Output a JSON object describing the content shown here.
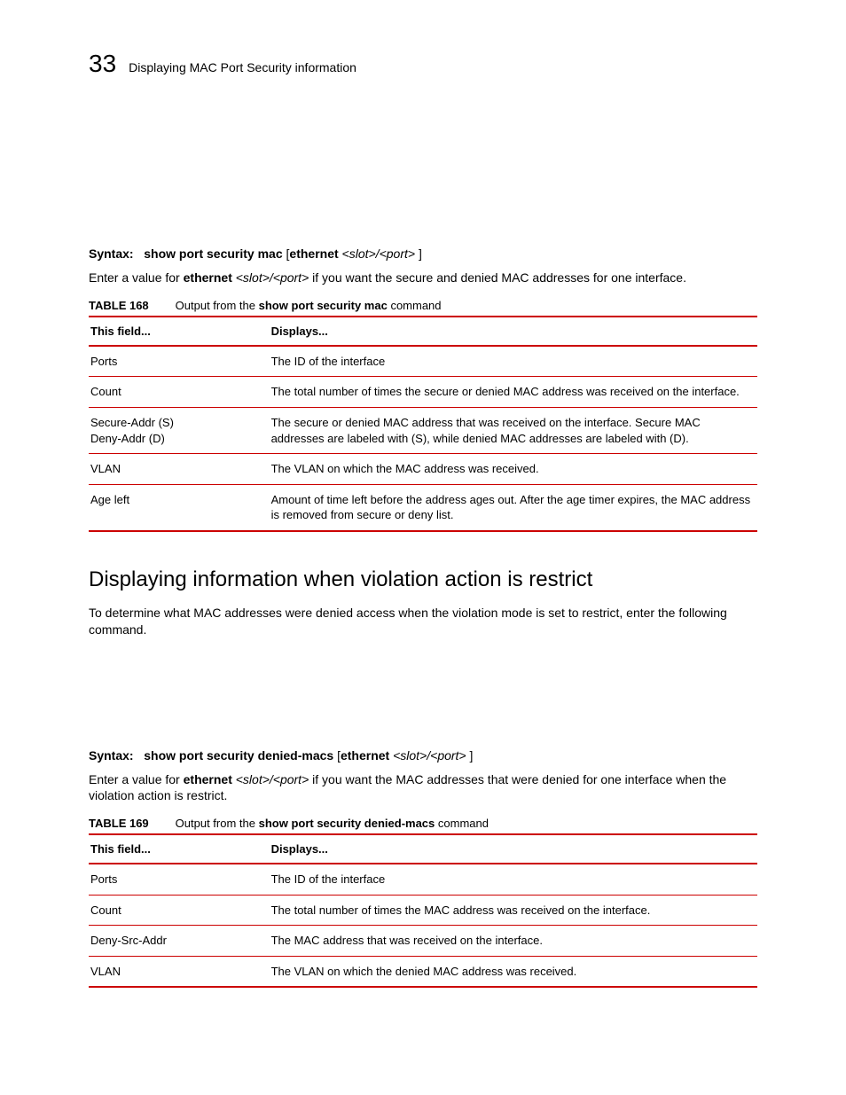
{
  "header": {
    "chapter_number": "33",
    "title": "Displaying MAC Port Security information"
  },
  "syntax1": {
    "label": "Syntax:",
    "cmd": "show port security mac",
    "open_paren": "[",
    "kw": "ethernet",
    "arg": "<slot>/<port>",
    "close_paren": " ]"
  },
  "para1_a": "Enter a value for ",
  "para1_b": "ethernet",
  "para1_c": " <slot>/<port>",
  "para1_d": " if you want the secure and denied MAC addresses for one interface.",
  "table168": {
    "label": "TABLE 168",
    "caption_a": "Output from the ",
    "caption_b": "show port security mac",
    "caption_c": "  command",
    "head_field": "This field...",
    "head_desc": "Displays...",
    "rows": [
      {
        "f": "Ports",
        "d": "The ID of the interface"
      },
      {
        "f": "Count",
        "d": "The total number of times the secure or denied MAC address was received on the interface."
      },
      {
        "f": "Secure-Addr (S)\nDeny-Addr (D)",
        "d": "The secure or denied MAC address that was received on the interface. Secure MAC addresses are labeled with (S), while denied MAC addresses are labeled with (D)."
      },
      {
        "f": "VLAN",
        "d": "The VLAN on which the MAC address was received."
      },
      {
        "f": "Age left",
        "d": "Amount of time left before the address ages out. After the age timer expires, the MAC address is removed from secure or deny list."
      }
    ]
  },
  "section_heading": "Displaying information when violation action is restrict",
  "para2": "To determine what MAC addresses were denied access when the violation mode is set to restrict, enter the following command.",
  "syntax2": {
    "label": "Syntax:",
    "cmd": "show port security denied-macs",
    "open_paren": "  [",
    "kw": "ethernet",
    "arg": "<slot>/<port>",
    "close_paren": " ]"
  },
  "para3_a": "Enter a value for ",
  "para3_b": "ethernet",
  "para3_c": " <slot>/<port>",
  "para3_d": " if you want the MAC addresses that were denied for one interface when the violation action is restrict.",
  "table169": {
    "label": "TABLE 169",
    "caption_a": "Output from the ",
    "caption_b": "show port security denied-macs",
    "caption_c": "  command",
    "head_field": "This field...",
    "head_desc": "Displays...",
    "rows": [
      {
        "f": "Ports",
        "d": "The ID of the interface"
      },
      {
        "f": "Count",
        "d": "The total number of times the MAC address was received on the interface."
      },
      {
        "f": "Deny-Src-Addr",
        "d": "The MAC address that was received on the interface."
      },
      {
        "f": "VLAN",
        "d": "The VLAN on which the denied MAC address was received."
      }
    ]
  }
}
